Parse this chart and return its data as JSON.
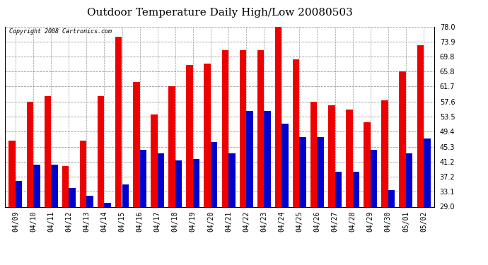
{
  "title": "Outdoor Temperature Daily High/Low 20080503",
  "copyright": "Copyright 2008 Cartronics.com",
  "dates": [
    "04/09",
    "04/10",
    "04/11",
    "04/12",
    "04/13",
    "04/14",
    "04/15",
    "04/16",
    "04/17",
    "04/18",
    "04/19",
    "04/20",
    "04/21",
    "04/22",
    "04/23",
    "04/24",
    "04/25",
    "04/26",
    "04/27",
    "04/28",
    "04/29",
    "04/30",
    "05/01",
    "05/02"
  ],
  "highs": [
    47.0,
    57.5,
    59.0,
    40.0,
    47.0,
    59.0,
    75.2,
    63.0,
    54.0,
    61.7,
    67.5,
    68.0,
    71.5,
    71.5,
    71.5,
    78.0,
    69.0,
    57.5,
    56.5,
    55.5,
    52.0,
    58.0,
    65.8,
    73.0
  ],
  "lows": [
    36.0,
    40.5,
    40.5,
    34.0,
    32.0,
    30.0,
    35.0,
    44.5,
    43.5,
    41.5,
    42.0,
    46.5,
    43.5,
    55.0,
    55.0,
    51.5,
    48.0,
    48.0,
    38.5,
    38.5,
    44.5,
    33.5,
    43.5,
    47.5
  ],
  "high_color": "#ee0000",
  "low_color": "#0000cc",
  "bg_color": "#ffffff",
  "grid_color": "#999999",
  "ylim_min": 29.0,
  "ylim_max": 78.0,
  "yticks": [
    29.0,
    33.1,
    37.2,
    41.2,
    45.3,
    49.4,
    53.5,
    57.6,
    61.7,
    65.8,
    69.8,
    73.9,
    78.0
  ],
  "bar_width": 0.38,
  "title_fontsize": 11,
  "tick_fontsize": 7,
  "copyright_fontsize": 6,
  "fig_width": 6.9,
  "fig_height": 3.75,
  "dpi": 100
}
